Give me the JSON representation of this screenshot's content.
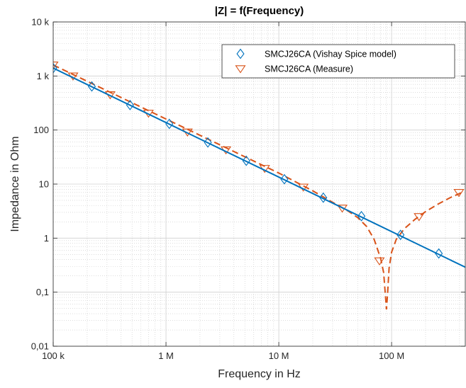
{
  "chart_data": {
    "type": "line",
    "title": "|Z| = f(Frequency)",
    "xlabel": "Frequency in Hz",
    "ylabel": "Impedance in Ohm",
    "xscale": "log",
    "yscale": "log",
    "xlim": [
      100000,
      450000000
    ],
    "ylim": [
      0.01,
      10000
    ],
    "grid": true,
    "minor_grid": true,
    "legend_position": "top-right",
    "x_ticks": [
      {
        "value": 100000,
        "label": "100 k"
      },
      {
        "value": 1000000,
        "label": "1 M"
      },
      {
        "value": 10000000,
        "label": "10 M"
      },
      {
        "value": 100000000,
        "label": "100 M"
      }
    ],
    "y_ticks": [
      {
        "value": 0.01,
        "label": "0,01"
      },
      {
        "value": 0.1,
        "label": "0,1"
      },
      {
        "value": 1,
        "label": "1"
      },
      {
        "value": 10,
        "label": "10"
      },
      {
        "value": 100,
        "label": "100"
      },
      {
        "value": 1000,
        "label": "1 k"
      },
      {
        "value": 10000,
        "label": "10 k"
      }
    ],
    "series": [
      {
        "name": "SMCJ26CA (Vishay Spice model)",
        "color": "#0072bd",
        "line_style": "solid",
        "marker": "diamond",
        "line_points": [
          [
            100000,
            1400
          ],
          [
            450000000,
            0.29
          ]
        ],
        "marker_points": [
          [
            100000,
            1400
          ],
          [
            220000,
            640
          ],
          [
            480000,
            290
          ],
          [
            1070000,
            130
          ],
          [
            2350000,
            59
          ],
          [
            5150000,
            27
          ],
          [
            11200000,
            12.3
          ],
          [
            24800000,
            5.6
          ],
          [
            54000000,
            2.55
          ],
          [
            120000000,
            1.15
          ],
          [
            262000000,
            0.52
          ]
        ]
      },
      {
        "name": "SMCJ26CA (Measure)",
        "color": "#d95319",
        "line_style": "dashed",
        "marker": "triangle-down",
        "line_points": [
          [
            100000,
            1600
          ],
          [
            200000,
            800
          ],
          [
            500000,
            320
          ],
          [
            1000000,
            160
          ],
          [
            2000000,
            80
          ],
          [
            5000000,
            32
          ],
          [
            10000000,
            16
          ],
          [
            20000000,
            7.5
          ],
          [
            30000000,
            4.6
          ],
          [
            40000000,
            3.3
          ],
          [
            50000000,
            2.4
          ],
          [
            60000000,
            1.65
          ],
          [
            70000000,
            0.95
          ],
          [
            80000000,
            0.42
          ],
          [
            85000000,
            0.23
          ],
          [
            88000000,
            0.09
          ],
          [
            90000000,
            0.048
          ],
          [
            92000000,
            0.09
          ],
          [
            95000000,
            0.28
          ],
          [
            100000000,
            0.55
          ],
          [
            110000000,
            0.95
          ],
          [
            130000000,
            1.5
          ],
          [
            160000000,
            2.2
          ],
          [
            200000000,
            3.1
          ],
          [
            260000000,
            4.3
          ],
          [
            330000000,
            5.6
          ],
          [
            420000000,
            7.0
          ]
        ],
        "marker_points": [
          [
            100000,
            1600
          ],
          [
            150000,
            1000
          ],
          [
            320000,
            450
          ],
          [
            700000,
            205
          ],
          [
            1550000,
            92
          ],
          [
            3400000,
            43
          ],
          [
            7500000,
            19.5
          ],
          [
            16500000,
            8.8
          ],
          [
            36500000,
            3.6
          ],
          [
            78000000,
            0.38
          ],
          [
            175000000,
            2.5
          ],
          [
            395000000,
            7.0
          ]
        ]
      }
    ]
  }
}
